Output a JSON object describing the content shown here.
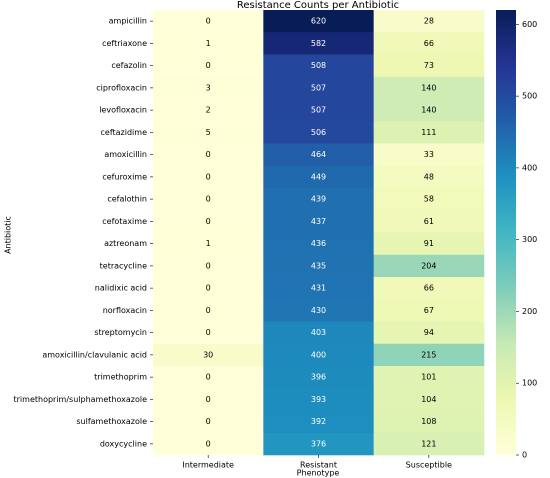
{
  "chart_data": {
    "type": "heatmap",
    "title": "Resistance Counts per Antibiotic",
    "xlabel": "Phenotype",
    "ylabel": "Antibiotic",
    "columns": [
      "Intermediate",
      "Resistant",
      "Susceptible"
    ],
    "rows": [
      "ampicillin",
      "ceftriaxone",
      "cefazolin",
      "ciprofloxacin",
      "levofloxacin",
      "ceftazidime",
      "amoxicillin",
      "cefuroxime",
      "cefalothin",
      "cefotaxime",
      "aztreonam",
      "tetracycline",
      "nalidixic acid",
      "norfloxacin",
      "streptomycin",
      "amoxicillin/clavulanic acid",
      "trimethoprim",
      "trimethoprim/sulphamethoxazole",
      "sulfamethoxazole",
      "doxycycline"
    ],
    "values": [
      [
        0,
        620,
        28
      ],
      [
        1,
        582,
        66
      ],
      [
        0,
        508,
        73
      ],
      [
        3,
        507,
        140
      ],
      [
        2,
        507,
        140
      ],
      [
        5,
        506,
        111
      ],
      [
        0,
        464,
        33
      ],
      [
        0,
        449,
        48
      ],
      [
        0,
        439,
        58
      ],
      [
        0,
        437,
        61
      ],
      [
        1,
        436,
        91
      ],
      [
        0,
        435,
        204
      ],
      [
        0,
        431,
        66
      ],
      [
        0,
        430,
        67
      ],
      [
        0,
        403,
        94
      ],
      [
        30,
        400,
        215
      ],
      [
        0,
        396,
        101
      ],
      [
        0,
        393,
        104
      ],
      [
        0,
        392,
        108
      ],
      [
        0,
        376,
        121
      ]
    ],
    "zlim": [
      0,
      620
    ],
    "zticks": [
      0,
      100,
      200,
      300,
      400,
      500,
      600
    ],
    "colorscale": [
      "#ffffd9",
      "#edf8b1",
      "#c7e9b4",
      "#7fcdbb",
      "#41b6c4",
      "#1d91c0",
      "#225ea8",
      "#253494",
      "#081d58"
    ]
  }
}
